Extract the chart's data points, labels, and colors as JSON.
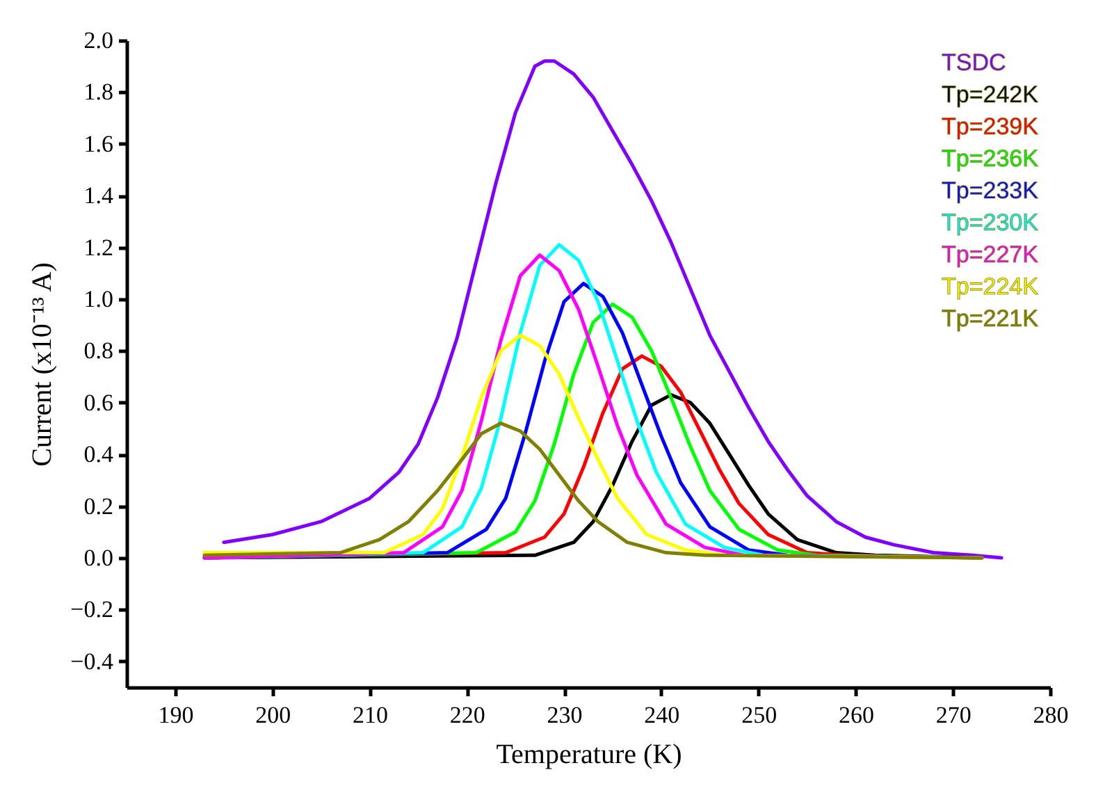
{
  "chart_data": {
    "type": "line",
    "xlabel": "Temperature (K)",
    "ylabel": "Current (x10⁻¹³ A)",
    "xlim": [
      185,
      280
    ],
    "xticks": [
      190,
      200,
      210,
      220,
      230,
      240,
      250,
      260,
      270,
      280
    ],
    "ylim": [
      -0.5,
      2.0
    ],
    "yticks": [
      -0.4,
      -0.2,
      {
        "value": 0,
        "label": "0.0"
      },
      0.2,
      0.4,
      0.6,
      0.8,
      {
        "value": 1,
        "label": "1.0"
      },
      1.2,
      1.4,
      1.6,
      1.8,
      {
        "value": 2,
        "label": "2.0"
      }
    ],
    "grid": false,
    "legend": "top right",
    "marker": "none",
    "line_style": "solid",
    "series": [
      {
        "name": "TSDC",
        "color": "#7f00ff",
        "x": [
          195,
          200,
          205,
          210,
          213,
          215,
          217,
          219,
          221,
          223,
          225,
          227,
          228,
          229,
          231,
          233,
          235,
          237,
          239,
          241,
          243,
          245,
          247,
          249,
          251,
          253,
          255,
          258,
          261,
          264,
          268,
          272,
          275
        ],
        "values": [
          0.06,
          0.09,
          0.14,
          0.23,
          0.33,
          0.44,
          0.62,
          0.85,
          1.15,
          1.45,
          1.72,
          1.9,
          1.92,
          1.92,
          1.87,
          1.78,
          1.65,
          1.52,
          1.38,
          1.22,
          1.04,
          0.86,
          0.72,
          0.58,
          0.45,
          0.34,
          0.24,
          0.14,
          0.08,
          0.05,
          0.02,
          0.01,
          0.0
        ]
      },
      {
        "name": "Tp=242K",
        "color": "#000000",
        "x": [
          193,
          227,
          231,
          233,
          235,
          237,
          239,
          241,
          243,
          245,
          247,
          249,
          251,
          254,
          258,
          262,
          273
        ],
        "values": [
          0.0,
          0.01,
          0.06,
          0.14,
          0.28,
          0.45,
          0.59,
          0.63,
          0.6,
          0.52,
          0.4,
          0.28,
          0.17,
          0.07,
          0.02,
          0.01,
          0.0
        ]
      },
      {
        "name": "Tp=239K",
        "color": "#ff0000",
        "x": [
          193,
          224,
          228,
          230,
          232,
          234,
          236,
          238,
          240,
          242,
          244,
          246,
          248,
          251,
          255,
          259,
          273
        ],
        "values": [
          0.0,
          0.02,
          0.08,
          0.17,
          0.35,
          0.56,
          0.73,
          0.78,
          0.74,
          0.64,
          0.49,
          0.34,
          0.21,
          0.09,
          0.02,
          0.01,
          0.0
        ]
      },
      {
        "name": "Tp=236K",
        "color": "#00ff00",
        "x": [
          193,
          221,
          225,
          227,
          229,
          231,
          233,
          235,
          237,
          239,
          241,
          243,
          245,
          248,
          252,
          256,
          273
        ],
        "values": [
          0.0,
          0.02,
          0.1,
          0.22,
          0.44,
          0.71,
          0.91,
          0.98,
          0.93,
          0.8,
          0.62,
          0.43,
          0.26,
          0.11,
          0.03,
          0.01,
          0.0
        ]
      },
      {
        "name": "Tp=233K",
        "color": "#0000ff",
        "x": [
          193,
          218,
          222,
          224,
          226,
          228,
          230,
          232,
          234,
          236,
          238,
          240,
          242,
          245,
          249,
          253,
          273
        ],
        "values": [
          0.0,
          0.02,
          0.11,
          0.23,
          0.48,
          0.76,
          0.99,
          1.06,
          1.01,
          0.87,
          0.67,
          0.47,
          0.29,
          0.12,
          0.03,
          0.01,
          0.0
        ]
      },
      {
        "name": "Tp=230K",
        "color": "#00ffff",
        "x": [
          193,
          215.5,
          219.5,
          221.5,
          223.5,
          225.5,
          227.5,
          229.5,
          231.5,
          233.5,
          235.5,
          237.5,
          239.5,
          242.5,
          246.5,
          250.5,
          273
        ],
        "values": [
          0.0,
          0.02,
          0.12,
          0.27,
          0.54,
          0.87,
          1.13,
          1.21,
          1.15,
          0.99,
          0.76,
          0.53,
          0.33,
          0.13,
          0.04,
          0.01,
          0.0
        ]
      },
      {
        "name": "Tp=227K",
        "color": "#ff00ff",
        "x": [
          193,
          213.5,
          217.5,
          219.5,
          221.5,
          223.5,
          225.5,
          227.5,
          229.5,
          231.5,
          233.5,
          235.5,
          237.5,
          240.5,
          244.5,
          248.5,
          273
        ],
        "values": [
          0.0,
          0.02,
          0.12,
          0.26,
          0.53,
          0.84,
          1.09,
          1.17,
          1.11,
          0.96,
          0.74,
          0.51,
          0.32,
          0.13,
          0.04,
          0.01,
          0.0
        ]
      },
      {
        "name": "Tp=224K",
        "color": "#ffff00",
        "x": [
          193,
          211.5,
          215.5,
          217.5,
          219.5,
          221.5,
          223.5,
          225.5,
          227.5,
          229.5,
          231.5,
          233.5,
          235.5,
          238.5,
          242.5,
          246.5,
          273
        ],
        "values": [
          0.02,
          0.02,
          0.09,
          0.19,
          0.39,
          0.62,
          0.8,
          0.86,
          0.82,
          0.71,
          0.54,
          0.38,
          0.23,
          0.09,
          0.03,
          0.01,
          0.0
        ]
      },
      {
        "name": "Tp=221K",
        "color": "#808000",
        "x": [
          193,
          207,
          211,
          214,
          217,
          219.5,
          221.5,
          223.5,
          225.5,
          227.5,
          229.5,
          231.5,
          233.5,
          236.5,
          240.5,
          244.5,
          273
        ],
        "values": [
          0.01,
          0.02,
          0.07,
          0.14,
          0.26,
          0.38,
          0.48,
          0.52,
          0.49,
          0.42,
          0.32,
          0.22,
          0.14,
          0.06,
          0.02,
          0.01,
          0.0
        ]
      }
    ]
  }
}
